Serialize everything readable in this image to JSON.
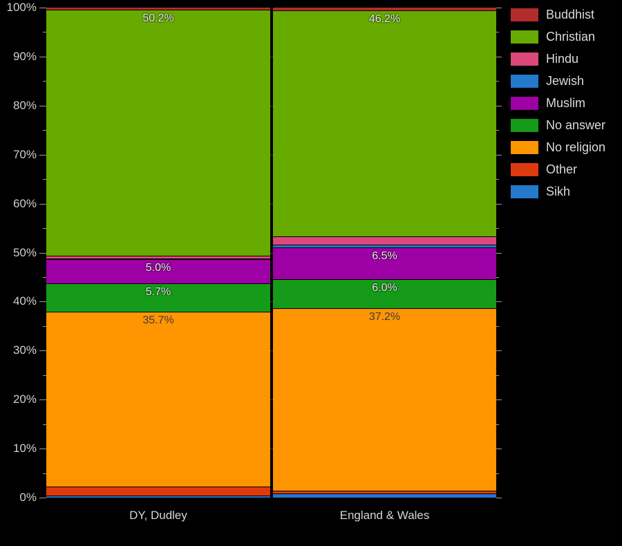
{
  "chart_data": {
    "type": "bar",
    "variant": "stacked-percentage-column",
    "title": "",
    "xlabel": "",
    "ylabel": "",
    "ylim": [
      0,
      100
    ],
    "grid": true,
    "legend_position": "right",
    "background_color": "#000000",
    "label_min_value": 3,
    "y_tick_values": [
      0,
      10,
      20,
      30,
      40,
      50,
      60,
      70,
      80,
      90,
      100
    ],
    "y_tick_labels": [
      "0%",
      "10%",
      "20%",
      "30%",
      "40%",
      "50%",
      "60%",
      "70%",
      "80%",
      "90%",
      "100%"
    ],
    "categories": [
      "DY, Dudley",
      "England & Wales"
    ],
    "series": [
      {
        "name": "Buddhist",
        "color": "#b22c2c",
        "values": [
          0.4,
          0.5
        ],
        "label_color": "#ebebeb",
        "label_halo": true
      },
      {
        "name": "Christian",
        "color": "#67aa00",
        "values": [
          50.2,
          46.2
        ],
        "label_color": "#ebebeb",
        "label_halo": true
      },
      {
        "name": "Hindu",
        "color": "#dc487c",
        "values": [
          0.6,
          1.7
        ],
        "label_color": "#ebebeb",
        "label_halo": true
      },
      {
        "name": "Jewish",
        "color": "#2479cd",
        "values": [
          0.1,
          0.5
        ],
        "label_color": "#ebebeb",
        "label_halo": true
      },
      {
        "name": "Muslim",
        "color": "#9d00a4",
        "values": [
          5.0,
          6.5
        ],
        "label_color": "#ebebeb",
        "label_halo": true
      },
      {
        "name": "No answer",
        "color": "#169a19",
        "values": [
          5.7,
          6.0
        ],
        "label_color": "#ebebeb",
        "label_halo": true
      },
      {
        "name": "No religion",
        "color": "#ff9500",
        "values": [
          35.7,
          37.2
        ],
        "label_color": "#3d3d3d",
        "label_halo": false
      },
      {
        "name": "Other",
        "color": "#de3a10",
        "values": [
          1.9,
          0.6
        ],
        "label_color": "#ebebeb",
        "label_halo": true
      },
      {
        "name": "Sikh",
        "color": "#2479cd",
        "values": [
          0.4,
          0.9
        ],
        "label_color": "#ebebeb",
        "label_halo": true
      }
    ],
    "shown_data_labels": {
      "DY, Dudley": {
        "Christian": "50.2%",
        "Muslim": "5.0%",
        "No answer": "5.7%",
        "No religion": "35.7%"
      },
      "England & Wales": {
        "Christian": "46.2%",
        "Muslim": "6.5%",
        "No answer": "6.0%",
        "No religion": "37.2%"
      }
    }
  }
}
